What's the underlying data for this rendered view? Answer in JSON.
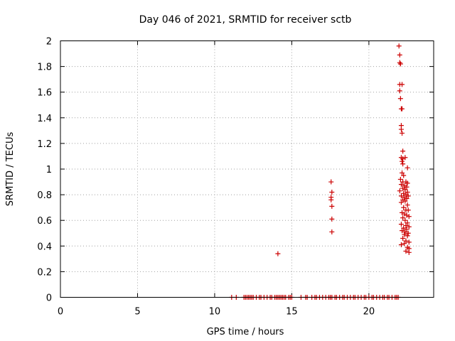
{
  "chart_data": {
    "type": "scatter",
    "title": "Day 046 of 2021, SRMTID for receiver sctb",
    "xlabel": "GPS time / hours",
    "ylabel": "SRMTID / TECUs",
    "xlim": [
      0,
      24.2
    ],
    "ylim": [
      0,
      2
    ],
    "xticks": [
      0,
      5,
      10,
      15,
      20
    ],
    "xtick_labels": [
      "0",
      "5",
      "10",
      "15",
      "20"
    ],
    "yticks": [
      0,
      0.2,
      0.4,
      0.6,
      0.8,
      1.0,
      1.2,
      1.4,
      1.6,
      1.8,
      2.0
    ],
    "ytick_labels": [
      "0",
      "0.2",
      "0.4",
      "0.6",
      "0.8",
      "1",
      "1.2",
      "1.4",
      "1.6",
      "1.8",
      "2"
    ],
    "grid": true,
    "marker": "+",
    "series": [
      {
        "name": "SRMTID",
        "color": "#cc0000",
        "points": [
          [
            11.1,
            0
          ],
          [
            11.4,
            0
          ],
          [
            11.9,
            0
          ],
          [
            12.0,
            0
          ],
          [
            12.1,
            0
          ],
          [
            12.2,
            0
          ],
          [
            12.3,
            0
          ],
          [
            12.4,
            0
          ],
          [
            12.5,
            0
          ],
          [
            12.7,
            0
          ],
          [
            12.9,
            0
          ],
          [
            13.0,
            0
          ],
          [
            13.2,
            0
          ],
          [
            13.4,
            0
          ],
          [
            13.6,
            0
          ],
          [
            13.7,
            0
          ],
          [
            13.9,
            0
          ],
          [
            14.0,
            0
          ],
          [
            14.1,
            0
          ],
          [
            14.2,
            0
          ],
          [
            14.3,
            0
          ],
          [
            14.4,
            0
          ],
          [
            14.5,
            0
          ],
          [
            14.6,
            0
          ],
          [
            14.8,
            0
          ],
          [
            14.9,
            0
          ],
          [
            15.0,
            0
          ],
          [
            15.6,
            0
          ],
          [
            15.9,
            0
          ],
          [
            16.0,
            0
          ],
          [
            16.3,
            0
          ],
          [
            16.5,
            0
          ],
          [
            16.6,
            0
          ],
          [
            16.8,
            0
          ],
          [
            17.0,
            0
          ],
          [
            17.2,
            0
          ],
          [
            17.4,
            0
          ],
          [
            17.5,
            0
          ],
          [
            17.6,
            0
          ],
          [
            17.8,
            0
          ],
          [
            17.9,
            0
          ],
          [
            18.1,
            0
          ],
          [
            18.3,
            0
          ],
          [
            18.4,
            0
          ],
          [
            18.6,
            0
          ],
          [
            18.8,
            0
          ],
          [
            19.0,
            0
          ],
          [
            19.1,
            0
          ],
          [
            19.3,
            0
          ],
          [
            19.5,
            0
          ],
          [
            19.7,
            0
          ],
          [
            19.8,
            0
          ],
          [
            20.0,
            0
          ],
          [
            20.2,
            0
          ],
          [
            20.3,
            0
          ],
          [
            20.5,
            0
          ],
          [
            20.7,
            0
          ],
          [
            20.9,
            0
          ],
          [
            21.0,
            0
          ],
          [
            21.2,
            0
          ],
          [
            21.3,
            0
          ],
          [
            21.5,
            0
          ],
          [
            21.7,
            0
          ],
          [
            21.8,
            0
          ],
          [
            21.9,
            0
          ],
          [
            14.1,
            0.34
          ],
          [
            17.55,
            0.9
          ],
          [
            17.6,
            0.82
          ],
          [
            17.55,
            0.78
          ],
          [
            17.55,
            0.76
          ],
          [
            17.6,
            0.71
          ],
          [
            17.6,
            0.61
          ],
          [
            17.6,
            0.51
          ],
          [
            21.95,
            1.96
          ],
          [
            22.0,
            1.89
          ],
          [
            22.0,
            1.83
          ],
          [
            22.05,
            1.82
          ],
          [
            22.0,
            1.66
          ],
          [
            22.15,
            1.66
          ],
          [
            22.0,
            1.61
          ],
          [
            22.05,
            1.55
          ],
          [
            22.1,
            1.47
          ],
          [
            22.15,
            1.47
          ],
          [
            22.1,
            1.34
          ],
          [
            22.1,
            1.31
          ],
          [
            22.15,
            1.28
          ],
          [
            22.2,
            1.14
          ],
          [
            22.1,
            1.09
          ],
          [
            22.2,
            1.08
          ],
          [
            22.35,
            1.09
          ],
          [
            22.15,
            1.06
          ],
          [
            22.2,
            1.04
          ],
          [
            22.5,
            1.01
          ],
          [
            22.15,
            0.97
          ],
          [
            22.25,
            0.95
          ],
          [
            22.05,
            0.92
          ],
          [
            22.2,
            0.9
          ],
          [
            22.4,
            0.9
          ],
          [
            22.5,
            0.89
          ],
          [
            22.1,
            0.88
          ],
          [
            22.3,
            0.87
          ],
          [
            22.45,
            0.86
          ],
          [
            22.2,
            0.85
          ],
          [
            22.35,
            0.84
          ],
          [
            22.0,
            0.83
          ],
          [
            22.5,
            0.82
          ],
          [
            22.25,
            0.81
          ],
          [
            22.4,
            0.8
          ],
          [
            22.1,
            0.79
          ],
          [
            22.55,
            0.79
          ],
          [
            22.3,
            0.78
          ],
          [
            22.45,
            0.77
          ],
          [
            22.2,
            0.76
          ],
          [
            22.35,
            0.75
          ],
          [
            22.1,
            0.74
          ],
          [
            22.5,
            0.72
          ],
          [
            22.25,
            0.7
          ],
          [
            22.4,
            0.68
          ],
          [
            22.55,
            0.68
          ],
          [
            22.15,
            0.66
          ],
          [
            22.3,
            0.65
          ],
          [
            22.45,
            0.64
          ],
          [
            22.6,
            0.63
          ],
          [
            22.2,
            0.62
          ],
          [
            22.35,
            0.6
          ],
          [
            22.5,
            0.58
          ],
          [
            22.1,
            0.57
          ],
          [
            22.4,
            0.56
          ],
          [
            22.6,
            0.55
          ],
          [
            22.25,
            0.54
          ],
          [
            22.45,
            0.53
          ],
          [
            22.15,
            0.52
          ],
          [
            22.35,
            0.51
          ],
          [
            22.55,
            0.5
          ],
          [
            22.3,
            0.49
          ],
          [
            22.5,
            0.48
          ],
          [
            22.2,
            0.46
          ],
          [
            22.4,
            0.44
          ],
          [
            22.6,
            0.43
          ],
          [
            22.3,
            0.42
          ],
          [
            22.1,
            0.41
          ],
          [
            22.5,
            0.39
          ],
          [
            22.6,
            0.38
          ],
          [
            22.4,
            0.36
          ],
          [
            22.6,
            0.35
          ]
        ]
      }
    ]
  }
}
